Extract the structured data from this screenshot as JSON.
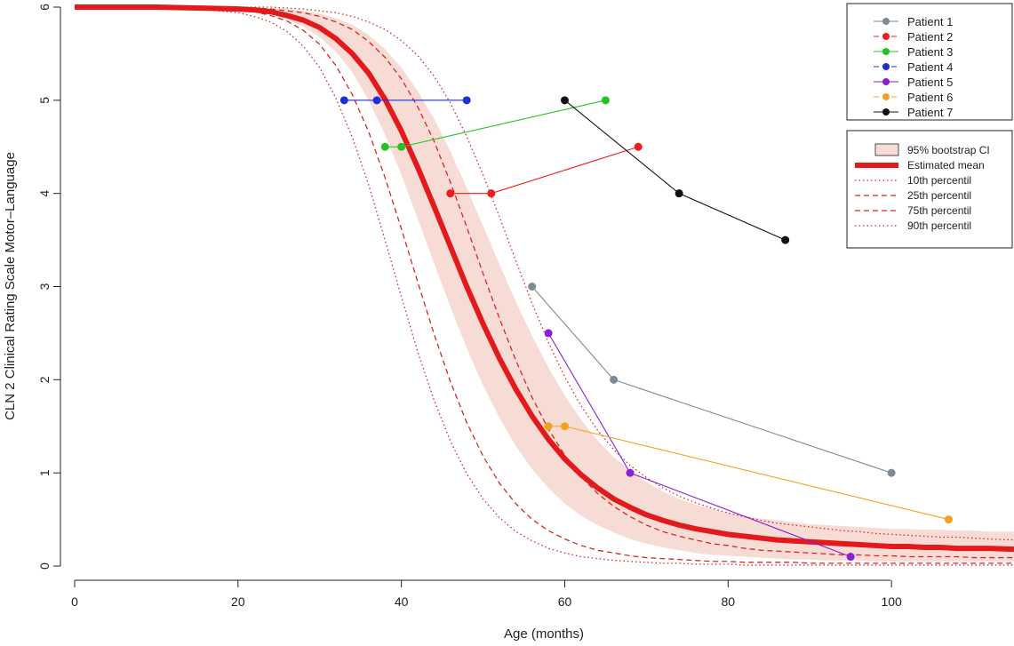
{
  "chart_data": {
    "type": "line",
    "title": "",
    "xlabel": "Age (months)",
    "ylabel": "CLN 2 Clinical Rating Scale Motor–Language",
    "xlim": [
      0,
      115
    ],
    "ylim": [
      0,
      6
    ],
    "x_ticks": [
      0,
      20,
      40,
      60,
      80,
      100
    ],
    "y_ticks": [
      0,
      1,
      2,
      3,
      4,
      5,
      6
    ],
    "grid": false,
    "model": {
      "x": [
        0,
        5,
        10,
        15,
        20,
        22,
        24,
        26,
        28,
        30,
        32,
        34,
        36,
        38,
        40,
        42,
        44,
        46,
        48,
        50,
        52,
        54,
        56,
        58,
        60,
        62,
        64,
        66,
        68,
        70,
        72,
        74,
        76,
        78,
        80,
        82,
        84,
        86,
        88,
        90,
        92,
        94,
        96,
        98,
        100,
        102,
        104,
        106,
        108,
        110,
        112,
        115
      ],
      "ci_band": {
        "name": "95% bootstrap CI",
        "color": "#f6dcd4",
        "lower": [
          5.99,
          5.99,
          5.99,
          5.99,
          5.97,
          5.95,
          5.92,
          5.87,
          5.79,
          5.68,
          5.52,
          5.3,
          5.0,
          4.63,
          4.2,
          3.73,
          3.25,
          2.78,
          2.34,
          1.94,
          1.59,
          1.29,
          1.04,
          0.84,
          0.67,
          0.54,
          0.44,
          0.36,
          0.29,
          0.24,
          0.2,
          0.17,
          0.14,
          0.12,
          0.11,
          0.1,
          0.09,
          0.08,
          0.07,
          0.07,
          0.06,
          0.06,
          0.06,
          0.05,
          0.05,
          0.05,
          0.05,
          0.05,
          0.05,
          0.05,
          0.05,
          0.05
        ],
        "upper": [
          6.0,
          6.0,
          6.0,
          6.0,
          6.0,
          6.0,
          5.99,
          5.98,
          5.96,
          5.93,
          5.88,
          5.81,
          5.7,
          5.55,
          5.35,
          5.1,
          4.8,
          4.45,
          4.06,
          3.65,
          3.24,
          2.84,
          2.47,
          2.13,
          1.83,
          1.57,
          1.35,
          1.17,
          1.02,
          0.9,
          0.8,
          0.72,
          0.66,
          0.61,
          0.57,
          0.54,
          0.51,
          0.49,
          0.47,
          0.45,
          0.44,
          0.43,
          0.42,
          0.41,
          0.4,
          0.4,
          0.39,
          0.39,
          0.38,
          0.38,
          0.37,
          0.37
        ]
      },
      "mean": {
        "name": "Estimated mean",
        "color": "#e31a1c",
        "y": [
          6.0,
          6.0,
          6.0,
          5.99,
          5.98,
          5.97,
          5.95,
          5.91,
          5.86,
          5.78,
          5.66,
          5.5,
          5.29,
          5.01,
          4.67,
          4.28,
          3.86,
          3.43,
          3.0,
          2.6,
          2.23,
          1.9,
          1.61,
          1.36,
          1.15,
          0.98,
          0.84,
          0.72,
          0.63,
          0.55,
          0.49,
          0.44,
          0.4,
          0.37,
          0.34,
          0.32,
          0.3,
          0.28,
          0.27,
          0.26,
          0.25,
          0.24,
          0.23,
          0.22,
          0.21,
          0.21,
          0.2,
          0.2,
          0.19,
          0.19,
          0.19,
          0.18
        ]
      },
      "percentiles": [
        {
          "name": "10th percentil",
          "dash": "dotted",
          "color": "#d62728",
          "y": [
            6.0,
            6.0,
            5.99,
            5.98,
            5.94,
            5.9,
            5.84,
            5.74,
            5.58,
            5.35,
            5.02,
            4.6,
            4.09,
            3.5,
            2.89,
            2.3,
            1.78,
            1.34,
            0.99,
            0.72,
            0.52,
            0.37,
            0.27,
            0.19,
            0.14,
            0.1,
            0.08,
            0.06,
            0.05,
            0.04,
            0.03,
            0.03,
            0.02,
            0.02,
            0.02,
            0.01,
            0.01,
            0.01,
            0.01,
            0.01,
            0.01,
            0.01,
            0.01,
            0.01,
            0.01,
            0.01,
            0.01,
            0.01,
            0.01,
            0.01,
            0.01,
            0.01
          ]
        },
        {
          "name": "25th percentil",
          "dash": "dashed",
          "color": "#d62728",
          "y": [
            6.0,
            6.0,
            6.0,
            5.99,
            5.97,
            5.95,
            5.91,
            5.85,
            5.75,
            5.6,
            5.37,
            5.06,
            4.66,
            4.17,
            3.62,
            3.05,
            2.49,
            1.98,
            1.54,
            1.18,
            0.89,
            0.67,
            0.5,
            0.38,
            0.29,
            0.22,
            0.17,
            0.14,
            0.11,
            0.09,
            0.08,
            0.07,
            0.06,
            0.05,
            0.05,
            0.04,
            0.04,
            0.04,
            0.04,
            0.03,
            0.03,
            0.03,
            0.03,
            0.03,
            0.03,
            0.03,
            0.03,
            0.03,
            0.03,
            0.03,
            0.03,
            0.03
          ]
        },
        {
          "name": "75th percentil",
          "dash": "dashed",
          "color": "#d62728",
          "y": [
            6.0,
            6.0,
            6.0,
            6.0,
            5.99,
            5.99,
            5.98,
            5.96,
            5.94,
            5.9,
            5.84,
            5.76,
            5.63,
            5.46,
            5.23,
            4.93,
            4.56,
            4.12,
            3.64,
            3.14,
            2.66,
            2.21,
            1.81,
            1.47,
            1.19,
            0.96,
            0.78,
            0.64,
            0.53,
            0.44,
            0.37,
            0.32,
            0.28,
            0.24,
            0.22,
            0.19,
            0.17,
            0.16,
            0.15,
            0.14,
            0.13,
            0.12,
            0.12,
            0.11,
            0.11,
            0.1,
            0.1,
            0.1,
            0.1,
            0.09,
            0.09,
            0.09
          ]
        },
        {
          "name": "90th percentil",
          "dash": "dotted",
          "color": "#d62728",
          "y": [
            6.0,
            6.0,
            6.0,
            6.0,
            6.0,
            6.0,
            6.0,
            5.99,
            5.98,
            5.96,
            5.94,
            5.9,
            5.84,
            5.76,
            5.64,
            5.48,
            5.26,
            4.97,
            4.61,
            4.2,
            3.75,
            3.28,
            2.82,
            2.4,
            2.03,
            1.72,
            1.46,
            1.25,
            1.08,
            0.95,
            0.84,
            0.75,
            0.68,
            0.62,
            0.57,
            0.53,
            0.49,
            0.46,
            0.44,
            0.42,
            0.4,
            0.38,
            0.37,
            0.35,
            0.34,
            0.33,
            0.32,
            0.31,
            0.31,
            0.3,
            0.29,
            0.28
          ]
        }
      ]
    },
    "series": [
      {
        "name": "Patient 1",
        "color": "#808a92",
        "dash": "solid",
        "points": [
          [
            56,
            3
          ],
          [
            66,
            2
          ],
          [
            100,
            1
          ]
        ]
      },
      {
        "name": "Patient 2",
        "color": "#ee1c1c",
        "dash": "dashed",
        "points": [
          [
            46,
            4
          ],
          [
            51,
            4
          ],
          [
            69,
            4.5
          ]
        ]
      },
      {
        "name": "Patient 3",
        "color": "#22c322",
        "dash": "solid",
        "points": [
          [
            38,
            4.5
          ],
          [
            40,
            4.5
          ],
          [
            65,
            5
          ]
        ]
      },
      {
        "name": "Patient 4",
        "color": "#1f2fd4",
        "dash": "dashed",
        "points": [
          [
            33,
            5
          ],
          [
            37,
            5
          ],
          [
            48,
            5
          ]
        ]
      },
      {
        "name": "Patient 5",
        "color": "#8a1fd4",
        "dash": "solid",
        "points": [
          [
            58,
            2.5
          ],
          [
            68,
            1
          ],
          [
            95,
            0.1
          ]
        ]
      },
      {
        "name": "Patient 6",
        "color": "#f5a01e",
        "dash": "dashed",
        "points": [
          [
            58,
            1.5
          ],
          [
            60,
            1.5
          ],
          [
            107,
            0.5
          ]
        ]
      },
      {
        "name": "Patient 7",
        "color": "#111111",
        "dash": "solid",
        "points": [
          [
            60,
            5
          ],
          [
            74,
            4
          ],
          [
            87,
            3.5
          ]
        ]
      }
    ],
    "legend": {
      "placement": "top-right"
    }
  }
}
